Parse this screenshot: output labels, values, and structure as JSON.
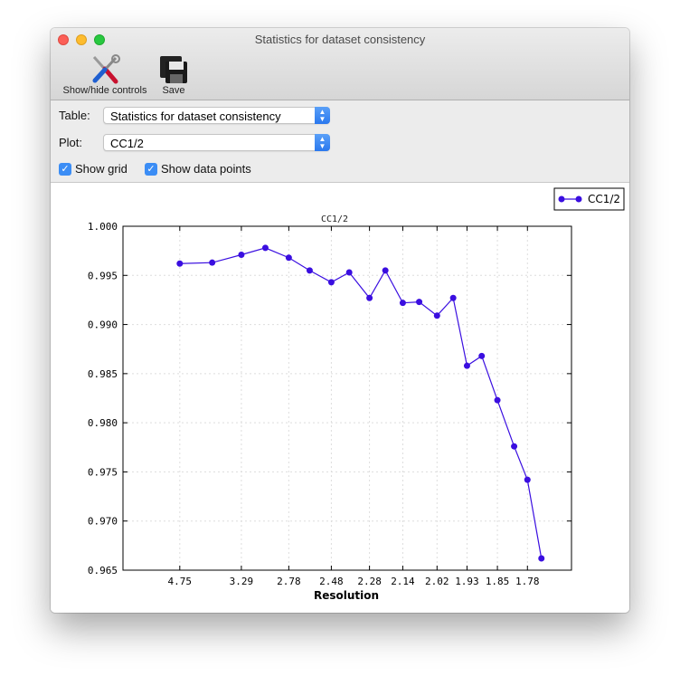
{
  "window": {
    "title": "Statistics for dataset consistency"
  },
  "toolbar": {
    "show_hide_label": "Show/hide controls",
    "save_label": "Save"
  },
  "controls": {
    "table_label": "Table:",
    "table_value": "Statistics for dataset consistency",
    "plot_label": "Plot:",
    "plot_value": "CC1/2",
    "show_grid_label": "Show grid",
    "show_grid_checked": true,
    "show_points_label": "Show data points",
    "show_points_checked": true
  },
  "colors": {
    "series": "#3a0ee0",
    "checkbox": "#3b8df5"
  },
  "chart_data": {
    "type": "line",
    "title": "CC1/2",
    "xlabel": "Resolution",
    "ylabel": "",
    "x_scale": "reciprocal-square (1/d^2), labels show d",
    "grid": true,
    "legend": {
      "position": "top-right",
      "entries": [
        "CC1/2"
      ]
    },
    "ylim": [
      0.965,
      1.0
    ],
    "yticks": [
      "1.000",
      "0.995",
      "0.990",
      "0.985",
      "0.980",
      "0.975",
      "0.970",
      "0.965"
    ],
    "xticks": [
      "4.75",
      "3.29",
      "2.78",
      "2.48",
      "2.28",
      "2.14",
      "2.02",
      "1.93",
      "1.85",
      "1.78"
    ],
    "series": [
      {
        "name": "CC1/2",
        "x": [
          4.75,
          3.79,
          3.29,
          3.0,
          2.78,
          2.62,
          2.48,
          2.38,
          2.28,
          2.21,
          2.14,
          2.08,
          2.02,
          1.97,
          1.93,
          1.89,
          1.85,
          1.81,
          1.78,
          1.75
        ],
        "y": [
          0.9962,
          0.9963,
          0.9971,
          0.9978,
          0.9968,
          0.9955,
          0.9943,
          0.9953,
          0.9927,
          0.9955,
          0.9922,
          0.9923,
          0.9909,
          0.9927,
          0.9858,
          0.9868,
          0.9823,
          0.9776,
          0.9742,
          0.9662
        ]
      }
    ]
  }
}
